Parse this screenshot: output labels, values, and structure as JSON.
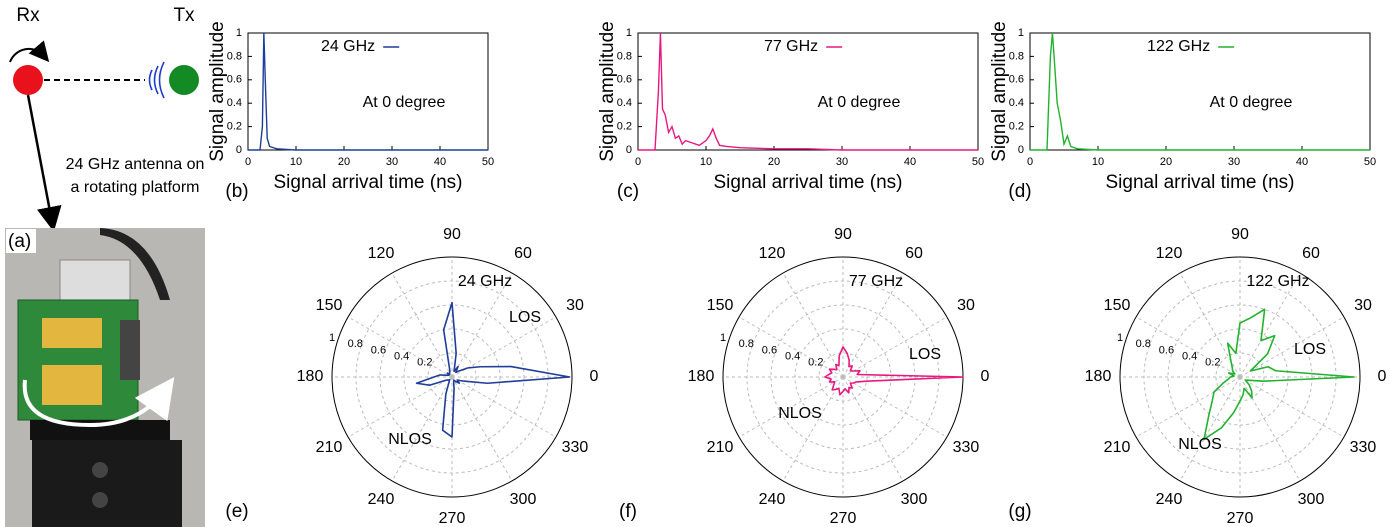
{
  "diagram": {
    "rx_label": "Rx",
    "tx_label": "Tx",
    "caption": [
      "24 GHz antenna on",
      "a rotating platform"
    ],
    "panel_label": "(a)"
  },
  "chart_data": [
    {
      "type": "line",
      "panel_label": "(b)",
      "xlabel": "Signal arrival time (ns)",
      "ylabel": "Signal amplitude",
      "annotation": "At 0 degree",
      "xlim": [
        0,
        50
      ],
      "xticks": [
        0,
        10,
        20,
        30,
        40,
        50
      ],
      "ylim": [
        0,
        1
      ],
      "yticks": [
        0,
        0.2,
        0.4,
        0.6,
        0.8,
        1
      ],
      "series": [
        {
          "name": "24 GHz",
          "color": "#1f3d99",
          "x": [
            0,
            2.5,
            3,
            3.3,
            3.6,
            4,
            4.5,
            6,
            10,
            20,
            30,
            40,
            50
          ],
          "values": [
            0,
            0,
            0.2,
            1,
            0.6,
            0.1,
            0.03,
            0.01,
            0,
            0,
            0,
            0,
            0
          ]
        }
      ]
    },
    {
      "type": "line",
      "panel_label": "(c)",
      "xlabel": "Signal arrival time (ns)",
      "ylabel": "Signal amplitude",
      "annotation": "At 0 degree",
      "xlim": [
        0,
        50
      ],
      "xticks": [
        0,
        10,
        20,
        30,
        40,
        50
      ],
      "ylim": [
        0,
        1
      ],
      "yticks": [
        0,
        0.2,
        0.4,
        0.6,
        0.8,
        1
      ],
      "series": [
        {
          "name": "77 GHz",
          "color": "#e6197f",
          "x": [
            0,
            2.5,
            3,
            3.3,
            3.6,
            4,
            4.5,
            5,
            5.5,
            6,
            6.5,
            7,
            8,
            9,
            10,
            10.5,
            11,
            11.5,
            12,
            13,
            15,
            20,
            25,
            30,
            40,
            50
          ],
          "values": [
            0,
            0,
            0.5,
            1,
            0.35,
            0.3,
            0.15,
            0.2,
            0.1,
            0.12,
            0.05,
            0.08,
            0.06,
            0.04,
            0.08,
            0.12,
            0.18,
            0.1,
            0.04,
            0.03,
            0.02,
            0.01,
            0.01,
            0,
            0,
            0
          ]
        }
      ]
    },
    {
      "type": "line",
      "panel_label": "(d)",
      "xlabel": "Signal arrival time (ns)",
      "ylabel": "Signal amplitude",
      "annotation": "At 0 degree",
      "xlim": [
        0,
        50
      ],
      "xticks": [
        0,
        10,
        20,
        30,
        40,
        50
      ],
      "ylim": [
        0,
        1
      ],
      "yticks": [
        0,
        0.2,
        0.4,
        0.6,
        0.8,
        1
      ],
      "series": [
        {
          "name": "122 GHz",
          "color": "#22b22e",
          "x": [
            0,
            2.5,
            3,
            3.3,
            3.6,
            4,
            4.5,
            5,
            5.5,
            6,
            7,
            10,
            20,
            30,
            40,
            50
          ],
          "values": [
            0,
            0,
            0.8,
            1,
            0.75,
            0.4,
            0.25,
            0.05,
            0.12,
            0.03,
            0.01,
            0,
            0,
            0,
            0,
            0
          ]
        }
      ]
    },
    {
      "type": "polar",
      "panel_label": "(e)",
      "annotations": [
        "24 GHz",
        "LOS",
        "NLOS"
      ],
      "grid": true,
      "rlim": [
        0,
        1
      ],
      "rticks": [
        0.2,
        0.4,
        0.6,
        0.8,
        1
      ],
      "thetaticks": [
        0,
        30,
        60,
        90,
        120,
        150,
        180,
        210,
        240,
        270,
        300,
        330
      ],
      "series": [
        {
          "name": "24 GHz",
          "color": "#1f3d99",
          "theta": [
            0,
            10,
            20,
            30,
            40,
            50,
            60,
            70,
            80,
            90,
            100,
            110,
            120,
            130,
            140,
            150,
            160,
            170,
            180,
            190,
            200,
            210,
            220,
            230,
            240,
            250,
            260,
            270,
            280,
            290,
            300,
            310,
            320,
            330,
            340,
            350
          ],
          "values": [
            0.98,
            0.5,
            0.25,
            0.15,
            0.08,
            0.05,
            0.1,
            0.05,
            0.2,
            0.62,
            0.4,
            0.05,
            0.04,
            0.03,
            0.05,
            0.03,
            0.04,
            0.1,
            0.15,
            0.3,
            0.2,
            0.05,
            0.04,
            0.03,
            0.05,
            0.15,
            0.45,
            0.5,
            0.1,
            0.04,
            0.03,
            0.05,
            0.08,
            0.05,
            0.1,
            0.3
          ]
        }
      ]
    },
    {
      "type": "polar",
      "panel_label": "(f)",
      "annotations": [
        "77 GHz",
        "LOS",
        "NLOS"
      ],
      "grid": true,
      "rlim": [
        0,
        1
      ],
      "rticks": [
        0.2,
        0.4,
        0.6,
        0.8,
        1
      ],
      "thetaticks": [
        0,
        30,
        60,
        90,
        120,
        150,
        180,
        210,
        240,
        270,
        300,
        330
      ],
      "series": [
        {
          "name": "77 GHz",
          "color": "#e6197f",
          "theta": [
            0,
            10,
            20,
            30,
            40,
            50,
            60,
            70,
            80,
            90,
            100,
            110,
            120,
            130,
            140,
            150,
            160,
            170,
            180,
            190,
            200,
            210,
            220,
            230,
            240,
            250,
            260,
            270,
            280,
            290,
            300,
            310,
            320,
            330,
            340,
            350
          ],
          "values": [
            1.0,
            0.12,
            0.15,
            0.1,
            0.08,
            0.12,
            0.1,
            0.15,
            0.2,
            0.25,
            0.18,
            0.1,
            0.12,
            0.08,
            0.1,
            0.13,
            0.1,
            0.12,
            0.15,
            0.1,
            0.12,
            0.08,
            0.1,
            0.14,
            0.12,
            0.1,
            0.15,
            0.12,
            0.1,
            0.14,
            0.1,
            0.12,
            0.08,
            0.1,
            0.12,
            0.2
          ]
        }
      ]
    },
    {
      "type": "polar",
      "panel_label": "(g)",
      "annotations": [
        "122 GHz",
        "LOS",
        "NLOS"
      ],
      "grid": true,
      "rlim": [
        0,
        1
      ],
      "rticks": [
        0.2,
        0.4,
        0.6,
        0.8,
        1
      ],
      "thetaticks": [
        0,
        30,
        60,
        90,
        120,
        150,
        180,
        210,
        240,
        270,
        300,
        330
      ],
      "series": [
        {
          "name": "122 GHz",
          "color": "#22b22e",
          "theta": [
            0,
            10,
            20,
            30,
            40,
            50,
            60,
            70,
            80,
            90,
            100,
            110,
            120,
            130,
            140,
            150,
            160,
            170,
            180,
            190,
            200,
            210,
            220,
            230,
            240,
            250,
            260,
            270,
            280,
            290,
            300,
            310,
            320,
            330,
            340,
            350
          ],
          "values": [
            0.95,
            0.3,
            0.25,
            0.1,
            0.3,
            0.45,
            0.35,
            0.6,
            0.5,
            0.45,
            0.2,
            0.3,
            0.15,
            0.1,
            0.08,
            0.05,
            0.1,
            0.05,
            0.08,
            0.1,
            0.15,
            0.25,
            0.3,
            0.4,
            0.6,
            0.45,
            0.3,
            0.2,
            0.15,
            0.1,
            0.2,
            0.15,
            0.1,
            0.05,
            0.08,
            0.2
          ]
        }
      ]
    }
  ]
}
